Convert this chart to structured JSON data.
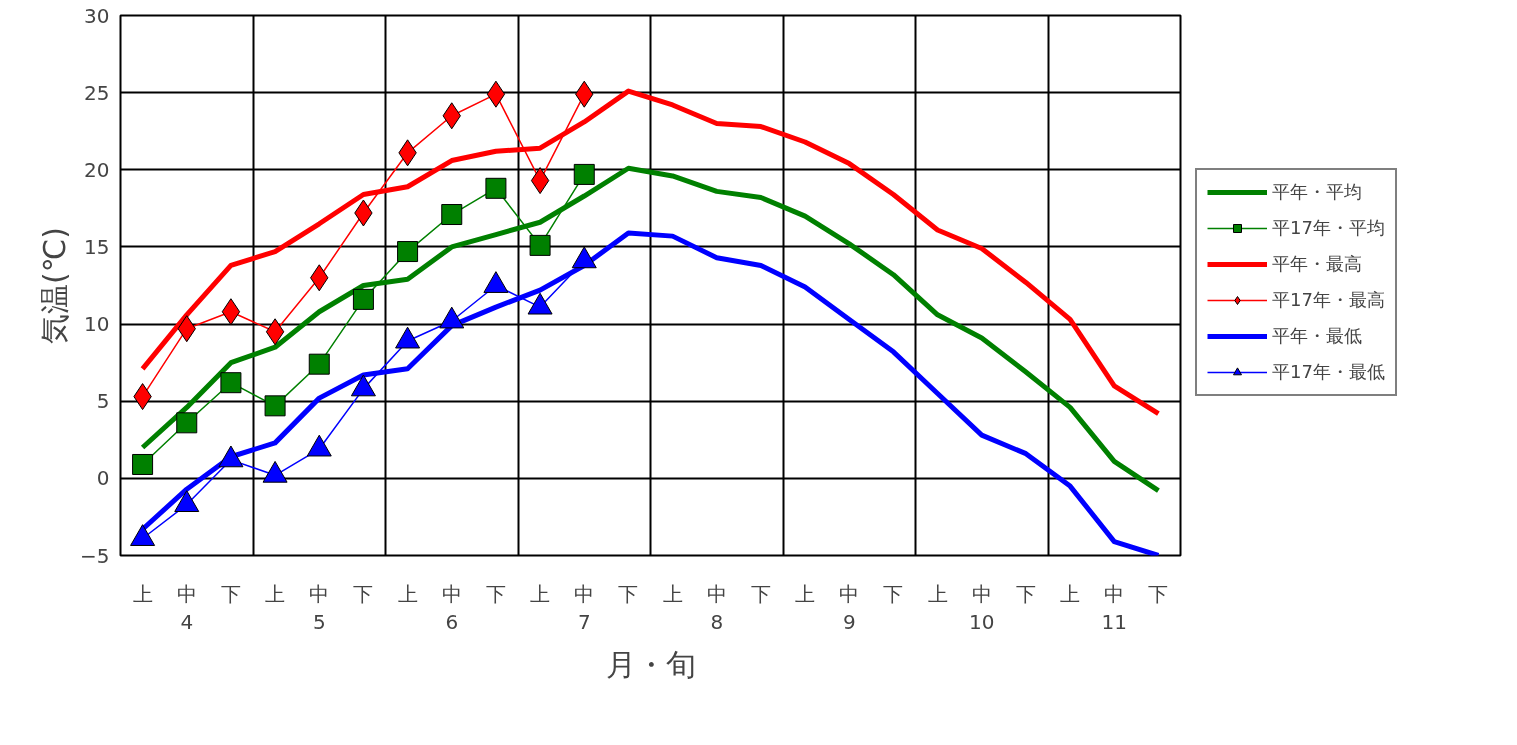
{
  "chart_data": {
    "type": "line",
    "xlabel": "月・旬",
    "ylabel": "気温(℃)",
    "categories": [
      "上",
      "中",
      "下",
      "上",
      "中",
      "下",
      "上",
      "中",
      "下",
      "上",
      "中",
      "下",
      "上",
      "中",
      "下",
      "上",
      "中",
      "下",
      "上",
      "中",
      "下",
      "上",
      "中",
      "下"
    ],
    "annotations": [
      "4",
      "5",
      "6",
      "7",
      "8",
      "9",
      "10",
      "11"
    ],
    "ylim": [
      -5,
      30
    ],
    "yticks": [
      -5,
      0,
      5,
      10,
      15,
      20,
      25,
      30
    ],
    "grid": true,
    "legend": "right",
    "line_style": "solid",
    "series": [
      {
        "name": "平年・平均",
        "color": "#008000",
        "marker": "none",
        "values": [
          2.0,
          4.6,
          7.5,
          8.5,
          10.8,
          12.5,
          12.9,
          15.0,
          15.8,
          16.6,
          18.3,
          20.1,
          19.6,
          18.6,
          18.2,
          17.0,
          15.2,
          13.2,
          10.6,
          9.1,
          6.9,
          4.6,
          1.1,
          -0.8
        ]
      },
      {
        "name": "平17年・平均",
        "color": "#008000",
        "marker": "square",
        "values": [
          0.9,
          3.6,
          6.2,
          4.7,
          7.4,
          11.6,
          14.7,
          17.1,
          18.8,
          15.1,
          19.7,
          null,
          null,
          null,
          null,
          null,
          null,
          null,
          null,
          null,
          null,
          null,
          null,
          null
        ]
      },
      {
        "name": "平年・最高",
        "color": "#ff0000",
        "marker": "none",
        "values": [
          7.1,
          10.6,
          13.8,
          14.7,
          16.5,
          18.4,
          18.9,
          20.6,
          21.2,
          21.4,
          23.1,
          25.1,
          24.2,
          23.0,
          22.8,
          21.8,
          20.4,
          18.4,
          16.1,
          14.9,
          12.7,
          10.3,
          6.0,
          4.2
        ]
      },
      {
        "name": "平17年・最高",
        "color": "#ff0000",
        "marker": "diamond",
        "values": [
          5.3,
          9.7,
          10.8,
          9.5,
          13.0,
          17.2,
          21.1,
          23.5,
          24.9,
          19.3,
          24.9,
          null,
          null,
          null,
          null,
          null,
          null,
          null,
          null,
          null,
          null,
          null,
          null,
          null
        ]
      },
      {
        "name": "平年・最低",
        "color": "#0000ff",
        "marker": "none",
        "values": [
          -3.3,
          -0.7,
          1.4,
          2.3,
          5.2,
          6.7,
          7.1,
          9.9,
          11.1,
          12.2,
          13.8,
          15.9,
          15.7,
          14.3,
          13.8,
          12.4,
          10.3,
          8.2,
          5.5,
          2.8,
          1.6,
          -0.5,
          -4.1,
          -5.0
        ]
      },
      {
        "name": "平17年・最低",
        "color": "#0000ff",
        "marker": "triangle",
        "values": [
          -3.9,
          -1.7,
          1.2,
          0.2,
          1.9,
          5.8,
          8.9,
          10.2,
          12.5,
          11.1,
          14.1,
          null,
          null,
          null,
          null,
          null,
          null,
          null,
          null,
          null,
          null,
          null,
          null,
          null
        ]
      }
    ]
  }
}
